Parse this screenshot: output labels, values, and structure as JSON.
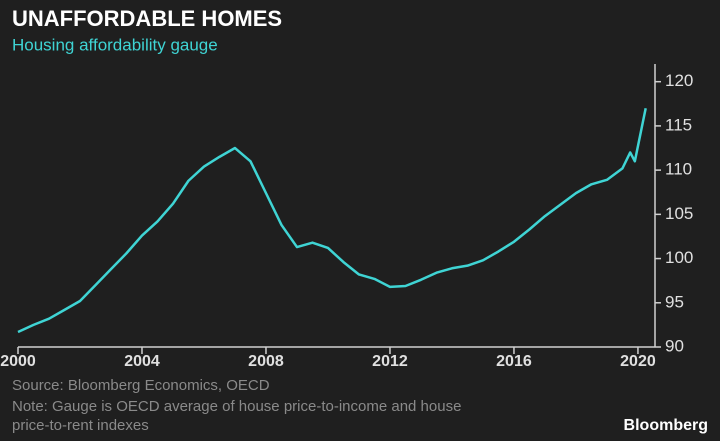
{
  "chart_data": {
    "type": "line",
    "title": "UNAFFORDABLE HOMES",
    "subtitle": "Housing affordability gauge",
    "source": "Source: Bloomberg Economics, OECD",
    "note": [
      "Note: Gauge is OECD average of house price-to-income and house",
      "price-to-rent indexes"
    ],
    "brand": "Bloomberg",
    "x": [
      2000,
      2000.5,
      2001,
      2001.5,
      2002,
      2002.5,
      2003,
      2003.5,
      2004,
      2004.5,
      2005,
      2005.5,
      2006,
      2006.5,
      2007,
      2007.5,
      2008,
      2008.5,
      2009,
      2009.5,
      2010,
      2010.5,
      2011,
      2011.5,
      2012,
      2012.5,
      2013,
      2013.5,
      2014,
      2014.5,
      2015,
      2015.5,
      2016,
      2016.5,
      2017,
      2017.5,
      2018,
      2018.5,
      2019,
      2019.5,
      2019.75,
      2019.9,
      2020.25
    ],
    "series": [
      {
        "name": "Housing affordability gauge",
        "color": "#3fd4d4",
        "values": [
          91.7,
          92.5,
          93.2,
          94.2,
          95.2,
          97.0,
          98.8,
          100.6,
          102.6,
          104.2,
          106.2,
          108.8,
          110.4,
          111.5,
          112.5,
          111.0,
          107.4,
          103.8,
          101.3,
          101.8,
          101.2,
          99.6,
          98.2,
          97.7,
          96.8,
          96.9,
          97.6,
          98.4,
          98.9,
          99.2,
          99.8,
          100.8,
          101.9,
          103.3,
          104.8,
          106.1,
          107.4,
          108.4,
          108.9,
          110.2,
          112.0,
          111.0,
          117.0
        ]
      }
    ],
    "xlim": [
      2000,
      2020.55
    ],
    "xticks": [
      2000,
      2004,
      2008,
      2012,
      2016,
      2020
    ],
    "ylim": [
      90,
      122
    ],
    "yticks": [
      90,
      95,
      100,
      105,
      110,
      115,
      120
    ],
    "y_axis_side": "right",
    "grid": false
  }
}
